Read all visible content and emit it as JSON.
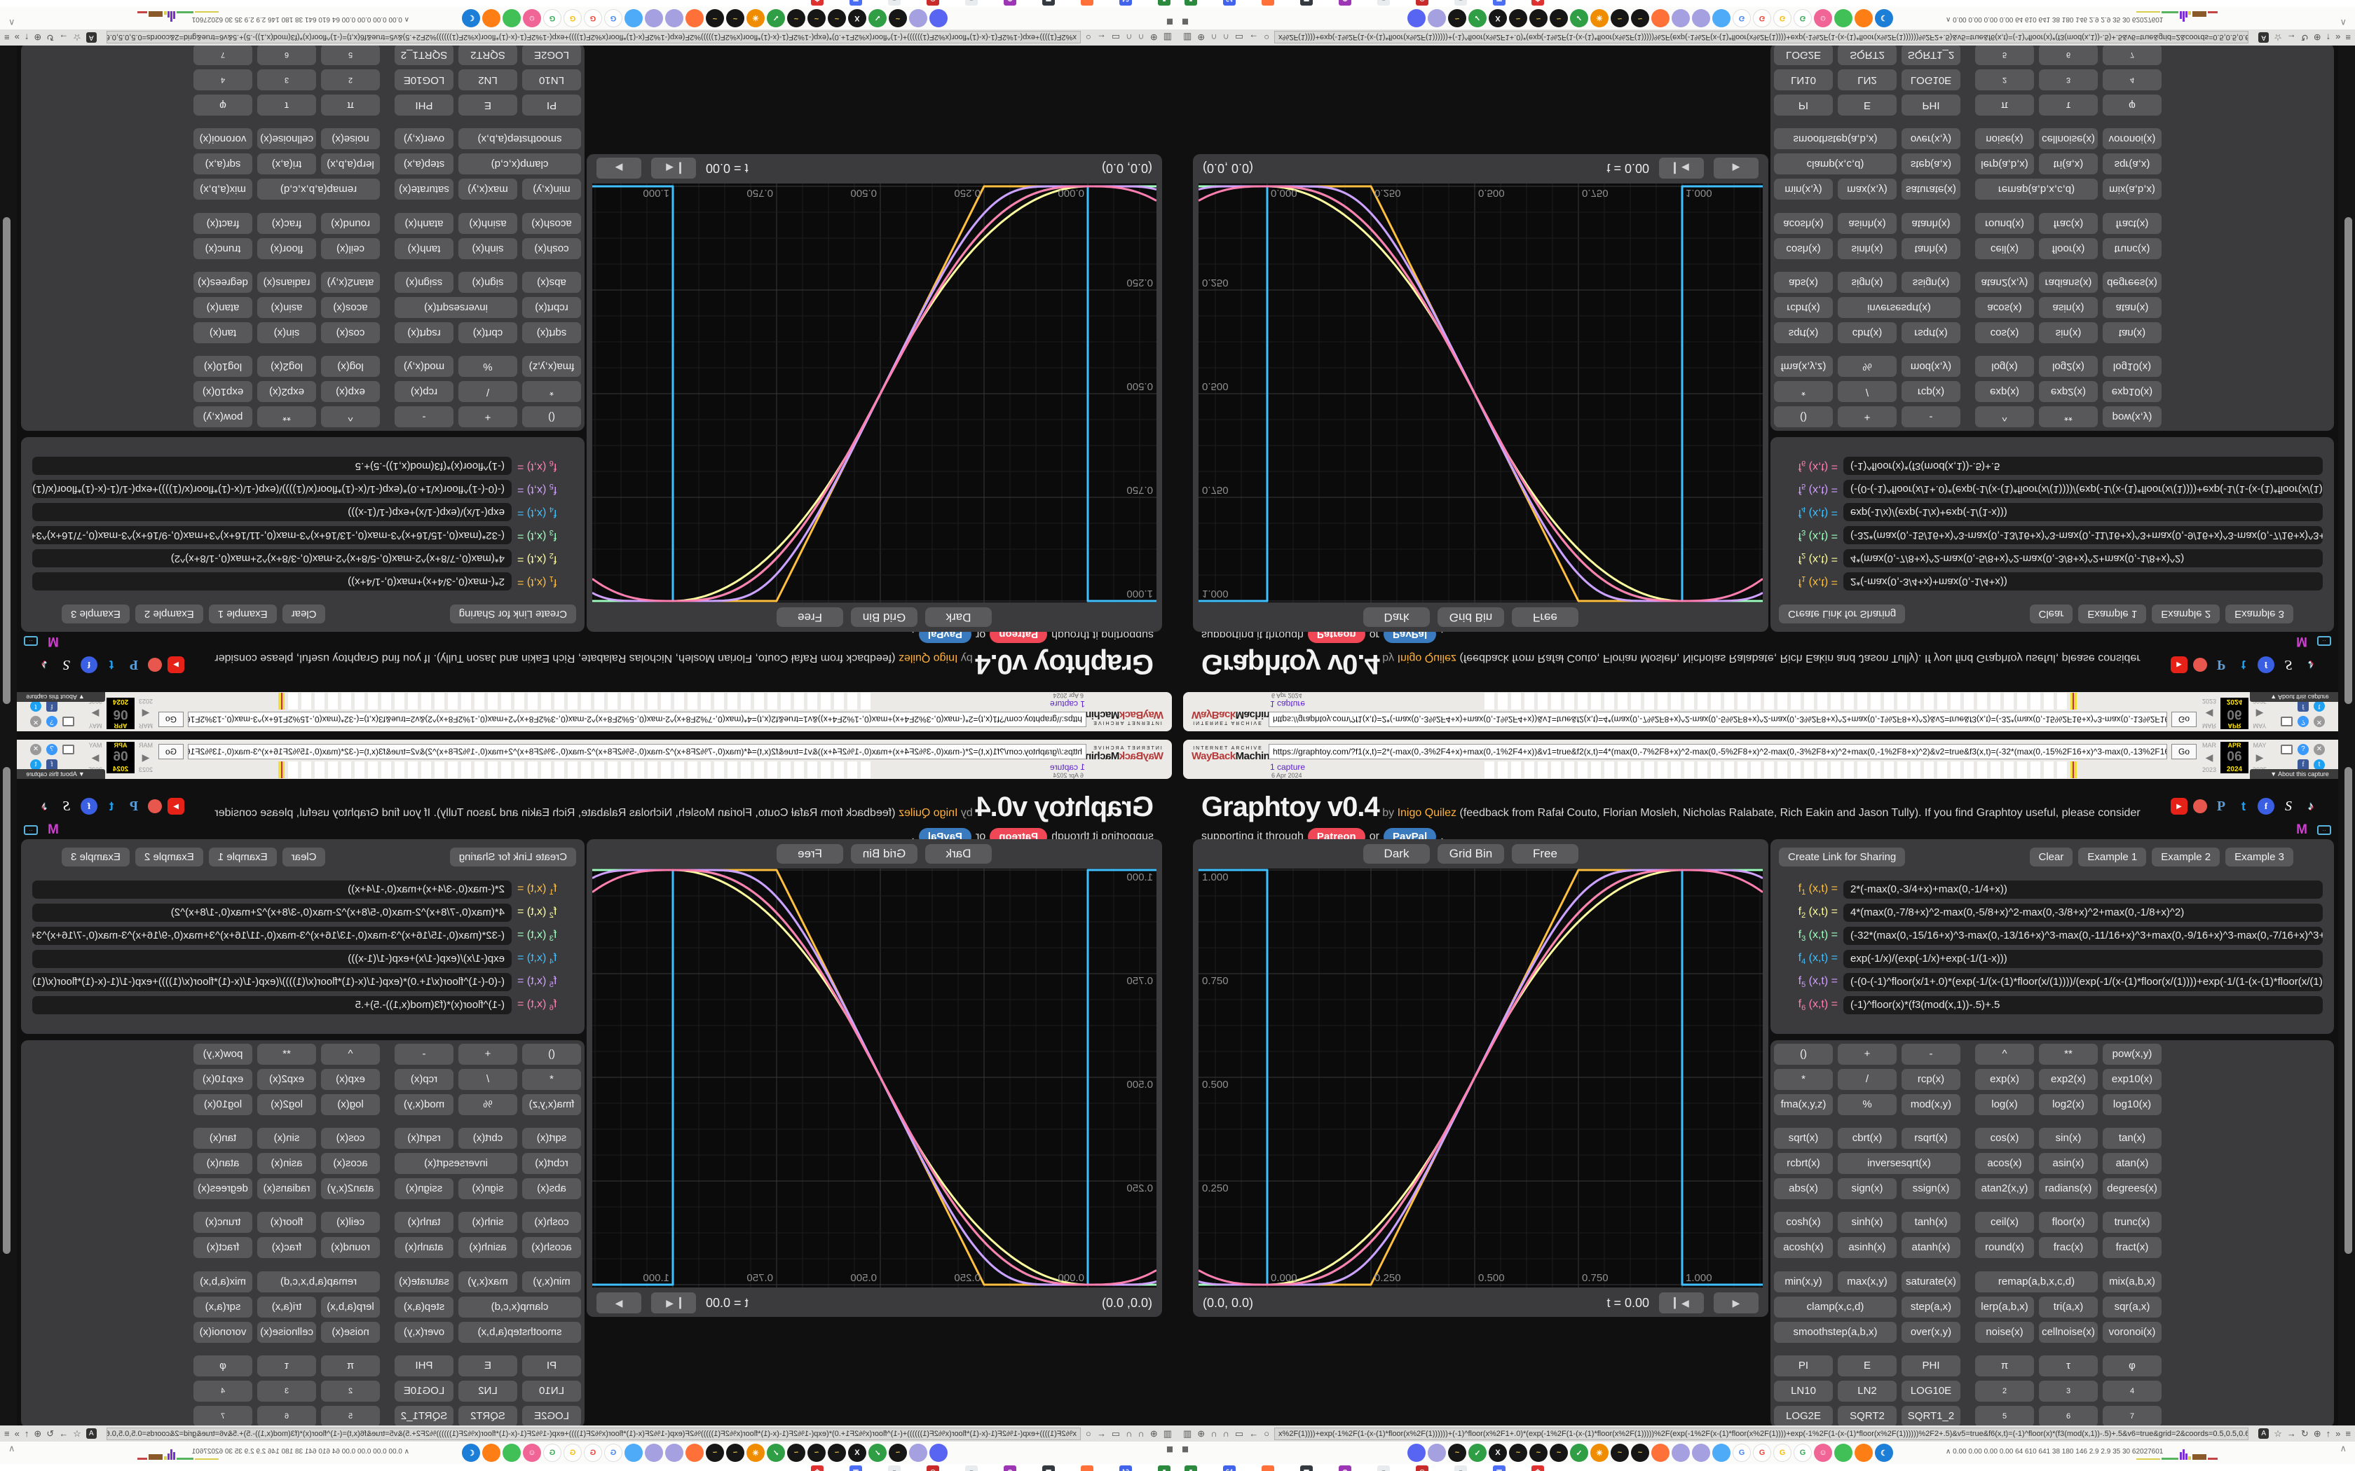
{
  "wayback": {
    "brand_top": "INTERNET ARCHIVE",
    "brand_red": "WayBack",
    "brand_black": "Machine",
    "url": "https://graphtoy.com/?f1(x,t)=2*(-max(0,-3%2F4+x)+max(0,-1%2F4+x))&v1=true&f2(x,t)=4*(max(0,-7%2F8+x)^2-max(0,-5%2F8+x)^2-max(0,-3%2F8+x)^2+max(0,-1%2F8+x)^2)&v2=true&f3(x,t)=(-32*(max(0,-15%2F16+x)^3-max(0,-13%2F16+x)^3-max(0,-11%2F16+x)",
    "go_label": "Go",
    "captures": "1 capture",
    "capture_date": "6 Apr 2024",
    "timeline_bar_count": 44,
    "cal_months": [
      "MAR",
      "APR",
      "MAY"
    ],
    "cal_arrows": [
      "◀",
      "▶"
    ],
    "cal_day": "06",
    "cal_years": [
      "2023",
      "2024",
      "2025"
    ],
    "about_label": "▼ About this capture",
    "icon_colors": {
      "help": "#3b99fc",
      "close": "#9a9a9a",
      "facebook": "#3b5998",
      "twitter": "#1da1f2"
    }
  },
  "header": {
    "title": "Graphtoy v0.4",
    "by": " by ",
    "author": "Inigo Quilez",
    "desc1": " (feedback from Rafał Couto, Florian Mosleh, Nicholas Ralabate, Rich Eakin and Jason Tully). If you find Graphtoy useful, please consider",
    "desc2_prefix": "supporting it through",
    "patreon_label": "Patreon",
    "or_label": "or",
    "paypal_label": "PayPal",
    "desc2_suffix": ".",
    "social_row1": [
      {
        "name": "youtube-icon",
        "cls": "yt",
        "glyph": "▶"
      },
      {
        "name": "patreon-icon",
        "cls": "pat",
        "glyph": ""
      },
      {
        "name": "paypal-icon",
        "cls": "pp",
        "glyph": "P"
      },
      {
        "name": "twitter-icon",
        "cls": "tw",
        "glyph": "t"
      },
      {
        "name": "facebook-icon",
        "cls": "fb",
        "glyph": "f"
      },
      {
        "name": "shadertoy-icon",
        "cls": "st",
        "glyph": "S"
      },
      {
        "name": "tiktok-icon",
        "cls": "tk",
        "glyph": "♪"
      }
    ],
    "social_row2": [
      {
        "name": "m-channel-icon",
        "cls": "m",
        "glyph": "M"
      },
      {
        "name": "tv-icon",
        "cls": "tv",
        "glyph": "··"
      }
    ]
  },
  "canvas": {
    "toolbar": [
      "Dark",
      "Grid Bin",
      "Free"
    ],
    "coords": "(0.0, 0.0)",
    "time": "t = 0.00",
    "play_icons": [
      "▎◀",
      "▶"
    ],
    "x_labels": [
      "0.000",
      "0.250",
      "0.500",
      "0.750",
      "1.000"
    ],
    "y_labels": [
      "1.000",
      "0.750",
      "0.500",
      "0.250"
    ],
    "grid_minor_color": "#1d1d1f",
    "grid_major_color": "#3a3a3c",
    "label_color": "#8f8f8f"
  },
  "formulas": {
    "share_label": "Create Link for Sharing",
    "clear_label": "Clear",
    "examples": [
      "Example 1",
      "Example 2",
      "Example 3"
    ],
    "rows": [
      {
        "sub": "1",
        "args": "(x,t) =",
        "color": "#ffc040",
        "value": "2*(-max(0,-3/4+x)+max(0,-1/4+x))"
      },
      {
        "sub": "2",
        "args": "(x,t) =",
        "color": "#ffffa0",
        "value": "4*(max(0,-7/8+x)^2-max(0,-5/8+x)^2-max(0,-3/8+x)^2+max(0,-1/8+x)^2)"
      },
      {
        "sub": "3",
        "args": "(x,t) =",
        "color": "#a0ffc0",
        "value": "(-32*(max(0,-15/16+x)^3-max(0,-13/16+x)^3-max(0,-11/16+x)^3+max(0,-9/16+x)^3-max(0,-7/16+x)^3+m"
      },
      {
        "sub": "4",
        "args": "(x,t) =",
        "color": "#40c0ff",
        "value": "exp(-1/x)/(exp(-1/x)+exp(-1/(1-x)))"
      },
      {
        "sub": "5",
        "args": "(x,t) =",
        "color": "#d0a0ff",
        "value": "(-(0-(-1)^floor(x/1+.0)*(exp(-1/(x-(1)*floor(x/(1))))/(exp(-1/(x-(1)*floor(x/(1))))+exp(-1/(1-(x-(1)*floor(x/(1))))))"
      },
      {
        "sub": "6",
        "args": "(x,t) =",
        "color": "#ff80b0",
        "value": "(-1)^floor(x)*(f3(mod(x,1))-.5)+.5"
      }
    ]
  },
  "buttons": {
    "rows": [
      {
        "cells": [
          {
            "l": "()"
          },
          {
            "l": "+"
          },
          {
            "l": "-"
          },
          {
            "l": "^"
          },
          {
            "l": "**"
          },
          {
            "l": "pow(x,y)"
          }
        ]
      },
      {
        "cells": [
          {
            "l": "*"
          },
          {
            "l": "/"
          },
          {
            "l": "rcp(x)"
          },
          {
            "l": "exp(x)"
          },
          {
            "l": "exp2(x)"
          },
          {
            "l": "exp10(x)"
          }
        ]
      },
      {
        "cells": [
          {
            "l": "fma(x,y,z)"
          },
          {
            "l": "%"
          },
          {
            "l": "mod(x,y)"
          },
          {
            "l": "log(x)"
          },
          {
            "l": "log2(x)"
          },
          {
            "l": "log10(x)"
          }
        ]
      },
      {
        "cells": [
          {
            "l": "sqrt(x)"
          },
          {
            "l": "cbrt(x)"
          },
          {
            "l": "rsqrt(x)"
          },
          {
            "l": "cos(x)"
          },
          {
            "l": "sin(x)"
          },
          {
            "l": "tan(x)"
          }
        ]
      },
      {
        "cells": [
          {
            "l": "rcbrt(x)"
          },
          {
            "l": "inversesqrt(x)",
            "span": 2
          },
          {
            "l": "acos(x)"
          },
          {
            "l": "asin(x)"
          },
          {
            "l": "atan(x)"
          }
        ]
      },
      {
        "cells": [
          {
            "l": "abs(x)"
          },
          {
            "l": "sign(x)"
          },
          {
            "l": "ssign(x)"
          },
          {
            "l": "atan2(x,y)"
          },
          {
            "l": "radians(x)"
          },
          {
            "l": "degrees(x)"
          }
        ]
      },
      {
        "cells": [
          {
            "l": "cosh(x)"
          },
          {
            "l": "sinh(x)"
          },
          {
            "l": "tanh(x)"
          },
          {
            "l": "ceil(x)"
          },
          {
            "l": "floor(x)"
          },
          {
            "l": "trunc(x)"
          }
        ]
      },
      {
        "cells": [
          {
            "l": "acosh(x)"
          },
          {
            "l": "asinh(x)"
          },
          {
            "l": "atanh(x)"
          },
          {
            "l": "round(x)"
          },
          {
            "l": "frac(x)"
          },
          {
            "l": "fract(x)"
          }
        ]
      },
      {
        "cells": [
          {
            "l": "min(x,y)"
          },
          {
            "l": "max(x,y)"
          },
          {
            "l": "saturate(x)"
          },
          {
            "l": "remap(a,b,x,c,d)",
            "span": 2
          },
          {
            "l": "mix(a,b,x)"
          }
        ]
      },
      {
        "cells": [
          {
            "l": "clamp(x,c,d)",
            "span": 2
          },
          {
            "l": "step(a,x)"
          },
          {
            "l": "lerp(a,b,x)"
          },
          {
            "l": "tri(a,x)"
          },
          {
            "l": "sqr(a,x)"
          }
        ]
      },
      {
        "cells": [
          {
            "l": "smoothstep(a,b,x)",
            "span": 2
          },
          {
            "l": "over(x,y)"
          },
          {
            "l": "noise(x)"
          },
          {
            "l": "cellnoise(x)"
          },
          {
            "l": "voronoi(x)"
          }
        ]
      },
      {
        "cells": [
          {
            "l": "PI"
          },
          {
            "l": "E"
          },
          {
            "l": "PHI"
          },
          {
            "l": "π"
          },
          {
            "l": "τ"
          },
          {
            "l": "φ"
          }
        ]
      },
      {
        "cells": [
          {
            "l": "LN10"
          },
          {
            "l": "LN2"
          },
          {
            "l": "LOG10E"
          },
          {
            "l": "2",
            "sup": true
          },
          {
            "l": "3",
            "sup": true
          },
          {
            "l": "4",
            "sup": true
          }
        ]
      },
      {
        "cells": [
          {
            "l": "LOG2E"
          },
          {
            "l": "SQRT2"
          },
          {
            "l": "SQRT1_2"
          },
          {
            "l": "5",
            "sup": true
          },
          {
            "l": "6",
            "sup": true
          },
          {
            "l": "7",
            "sup": true
          }
        ]
      }
    ]
  },
  "chrome": {
    "nav_left_icons": [
      "▥",
      "⊕",
      "∩",
      "∩",
      "▭",
      "←",
      "○"
    ],
    "url_tail": "x%2F(1))))+exp(-1%2F(1-(x-(1)*floor(x%2F(1))))))+(-1)^floor(x%2F1+.0)*(exp(-1%2F(1-(x-(1)*floor(x%2F(1)))))%2F(exp(-1%2F(x-(1)*floor(x%2F(1))))+exp(-1%2F(1-(x-(1)*floor(x%2F(1))))))%2F2+.5)&v5=true&f6(x,t)=(-1)^floor(x)*(f3(mod(x,1))-.5)+.5&v6=true&grid=2&coords=0.5,0.5,0.6669354838709677",
    "nav_right_icons": [
      "☆",
      "→",
      "↻",
      "⊕",
      "↑",
      "»",
      "≡"
    ],
    "translate_icon": "A",
    "pause_icon": "▮▮",
    "caret_icon": "∧",
    "stats": "∧  0.00 0.00 0.00 0.00   64   610   641   38   180   146   2.9   2.9   35   30   62027601",
    "tabs": [
      {
        "c": "#5865f2",
        "g": "",
        "f": "#fff"
      },
      {
        "c": "#a5a0e0",
        "g": "",
        "f": "#fff"
      },
      {
        "c": "#161616",
        "g": "~",
        "f": "#e8c547"
      },
      {
        "c": "#2f9e44",
        "g": "✓",
        "f": "#fff"
      },
      {
        "c": "#161616",
        "g": "X",
        "f": "#fff"
      },
      {
        "c": "#161616",
        "g": "~",
        "f": "#e8c547"
      },
      {
        "c": "#161616",
        "g": "~",
        "f": "#e8c547"
      },
      {
        "c": "#161616",
        "g": "~",
        "f": "#e8c547"
      },
      {
        "c": "#2f9e44",
        "g": "✓",
        "f": "#fff"
      },
      {
        "c": "#f08c00",
        "g": "✳",
        "f": "#fff"
      },
      {
        "c": "#161616",
        "g": "~",
        "f": "#e8c547"
      },
      {
        "c": "#161616",
        "g": "~",
        "f": "#e8c547"
      },
      {
        "c": "#ff7139",
        "g": "",
        "f": "#fff"
      },
      {
        "c": "#a5a0e0",
        "g": "",
        "f": "#fff"
      },
      {
        "c": "#a5a0e0",
        "g": "",
        "f": "#fff"
      },
      {
        "c": "#4dabf7",
        "g": "",
        "f": "#fff"
      },
      {
        "c": "#ffffff",
        "g": "G",
        "f": "#4285f4"
      },
      {
        "c": "#ffffff",
        "g": "G",
        "f": "#ea4335"
      },
      {
        "c": "#ffffff",
        "g": "G",
        "f": "#fbbc05"
      },
      {
        "c": "#ffffff",
        "g": "G",
        "f": "#34a853"
      },
      {
        "c": "#f06595",
        "g": "☺",
        "f": "#fff"
      },
      {
        "c": "#40c057",
        "g": "",
        "f": "#fff"
      },
      {
        "c": "#fd7e14",
        "g": "",
        "f": "#fff"
      },
      {
        "c": "#1c7ed6",
        "g": "☾",
        "f": "#fff"
      }
    ],
    "bookmarks": [
      {
        "c": "#2b8a3e",
        "g": "▮"
      },
      {
        "c": "#4263eb",
        "g": "64"
      },
      {
        "c": "#ff7139",
        "g": ""
      },
      {
        "c": "#343a40",
        "g": "▦"
      },
      {
        "c": "#9c36b5",
        "g": "◉"
      },
      {
        "c": "#e9ecef",
        "g": "≡",
        "f": "#868e96"
      },
      {
        "c": "#c92a2a",
        "g": "◎"
      },
      {
        "c": "#e9ecef",
        "g": "≡",
        "f": "#868e96"
      },
      {
        "c": "#4c6ef5",
        "g": "▣"
      },
      {
        "c": "#e03131",
        "g": "✿"
      }
    ],
    "meter_bars": [
      {
        "l": 0,
        "w": 34,
        "h": 2,
        "c": "#d8cf4e"
      },
      {
        "l": 36,
        "w": 24,
        "h": 3,
        "c": "#58b35f"
      },
      {
        "l": 62,
        "w": 3,
        "h": 11,
        "c": "#7b2fd2"
      },
      {
        "l": 66,
        "w": 3,
        "h": 15,
        "c": "#7b2fd2"
      },
      {
        "l": 70,
        "w": 3,
        "h": 9,
        "c": "#7b2fd2"
      },
      {
        "l": 74,
        "w": 4,
        "h": 5,
        "c": "#d8cf4e"
      },
      {
        "l": 80,
        "w": 20,
        "h": 8,
        "c": "#8a5a2b"
      },
      {
        "l": 102,
        "w": 14,
        "h": 3,
        "c": "#c44444"
      }
    ]
  }
}
